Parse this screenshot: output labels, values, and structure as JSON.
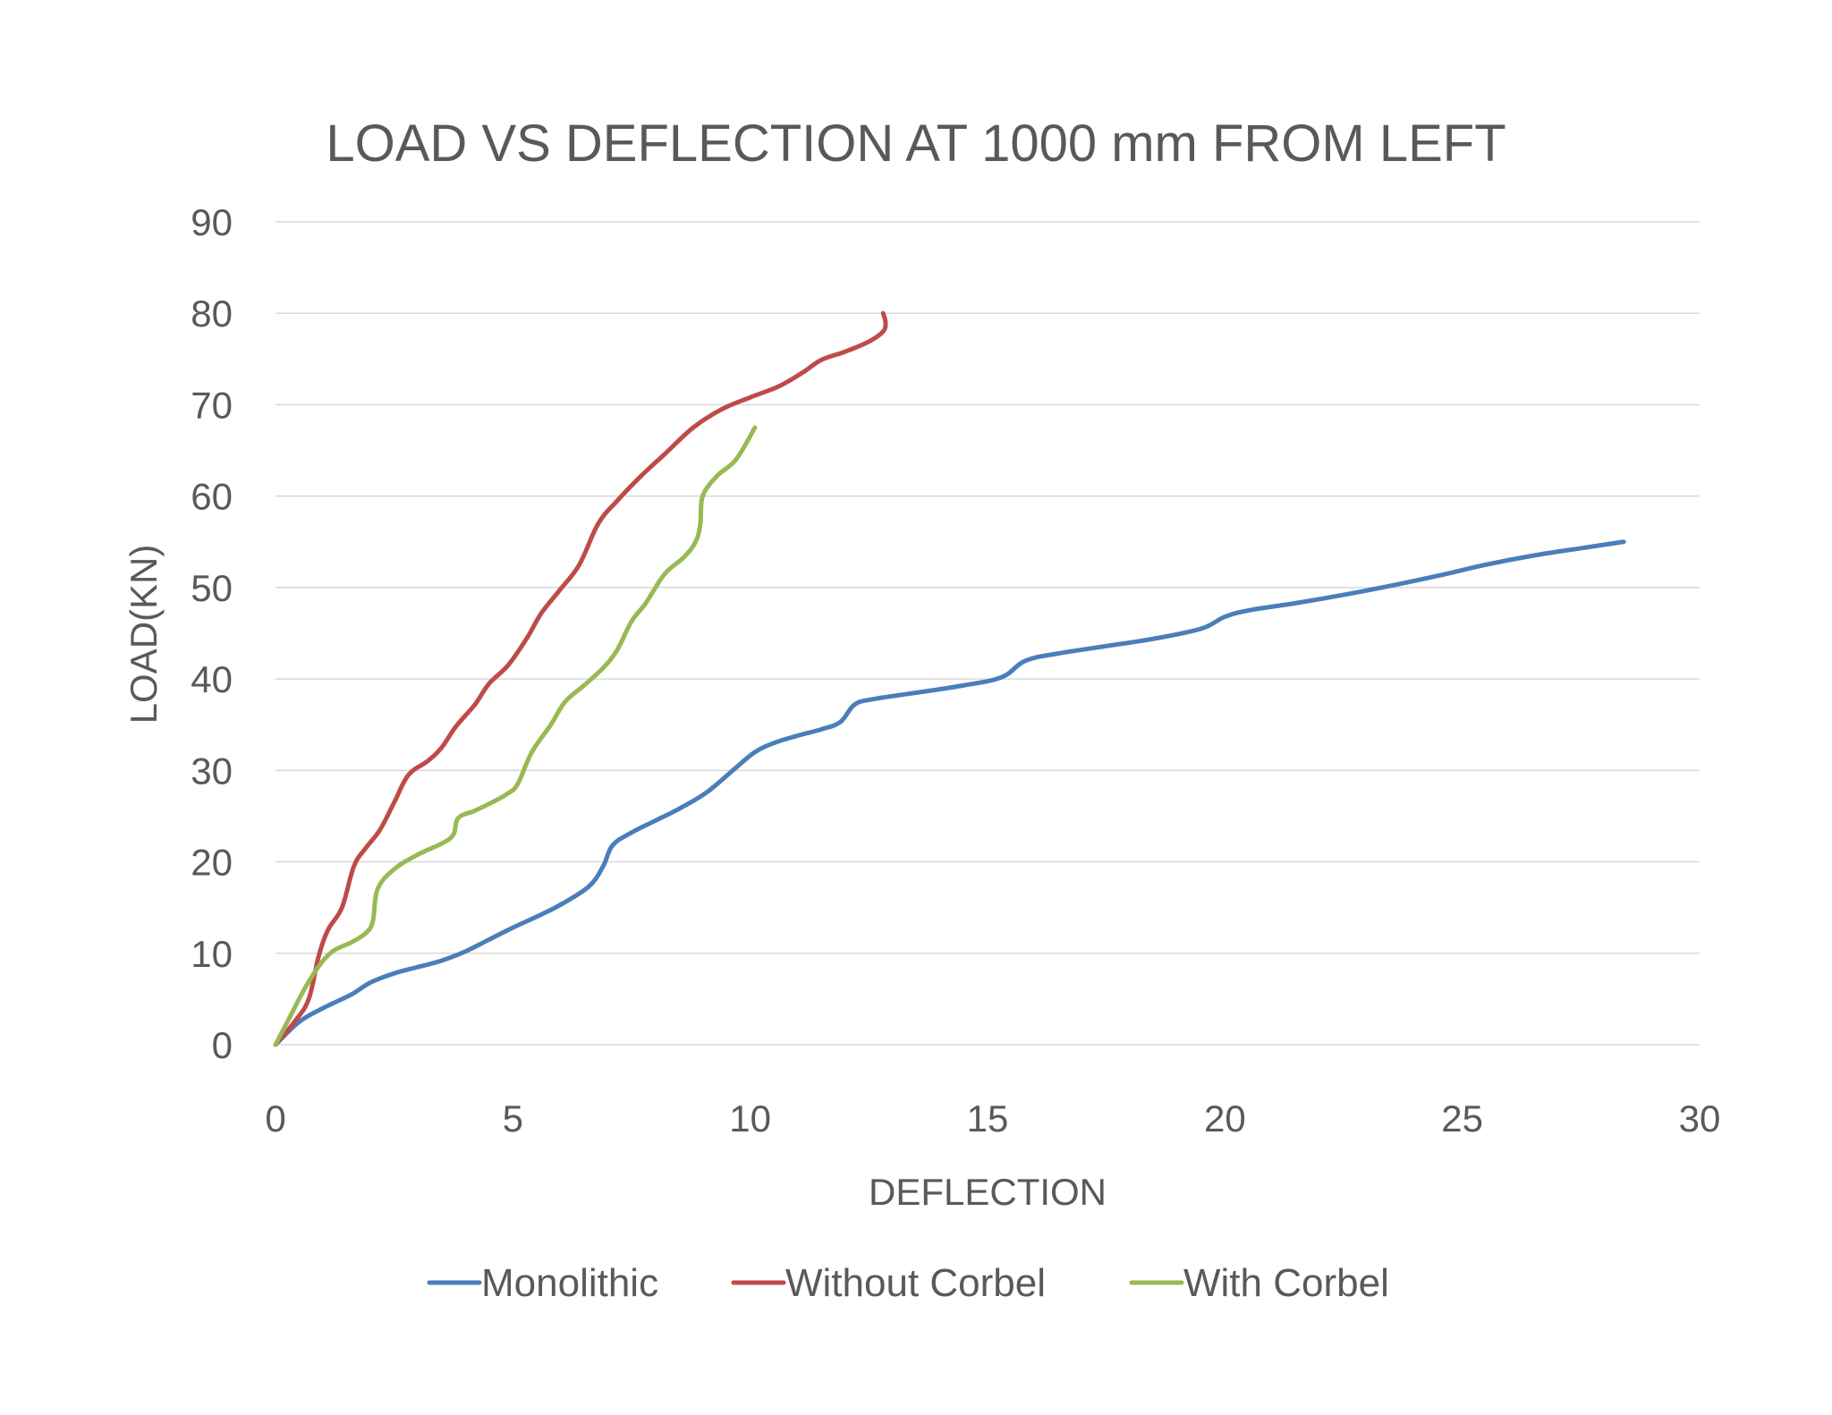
{
  "chart_data": {
    "type": "line",
    "title": "LOAD VS DEFLECTION AT 1000 mm FROM LEFT",
    "xlabel": "DEFLECTION",
    "ylabel": "LOAD(KN)",
    "xlim": [
      0,
      30
    ],
    "ylim": [
      0,
      90
    ],
    "xticks": [
      0,
      5,
      10,
      15,
      20,
      25,
      30
    ],
    "yticks": [
      0,
      10,
      20,
      30,
      40,
      50,
      60,
      70,
      80,
      90
    ],
    "grid": "horizontal",
    "legend_position": "bottom",
    "series": [
      {
        "name": "Monolithic",
        "color": "#4a7ebb",
        "points": [
          [
            0,
            0
          ],
          [
            0.5,
            2.5
          ],
          [
            1.0,
            4
          ],
          [
            1.6,
            5.5
          ],
          [
            2.0,
            6.8
          ],
          [
            2.5,
            7.8
          ],
          [
            3.0,
            8.5
          ],
          [
            3.5,
            9.2
          ],
          [
            4.0,
            10.2
          ],
          [
            4.5,
            11.5
          ],
          [
            5.0,
            12.8
          ],
          [
            5.5,
            14
          ],
          [
            6.0,
            15.3
          ],
          [
            6.6,
            17.3
          ],
          [
            6.9,
            19.5
          ],
          [
            7.1,
            21.8
          ],
          [
            7.5,
            23.2
          ],
          [
            8.0,
            24.5
          ],
          [
            8.5,
            25.8
          ],
          [
            9.0,
            27.3
          ],
          [
            9.3,
            28.5
          ],
          [
            9.7,
            30.3
          ],
          [
            10.1,
            32
          ],
          [
            10.5,
            33
          ],
          [
            11.0,
            33.8
          ],
          [
            11.5,
            34.5
          ],
          [
            11.9,
            35.3
          ],
          [
            12.2,
            37.2
          ],
          [
            12.6,
            37.8
          ],
          [
            13.5,
            38.5
          ],
          [
            14.5,
            39.3
          ],
          [
            15.3,
            40.2
          ],
          [
            15.8,
            42
          ],
          [
            16.5,
            42.8
          ],
          [
            17.5,
            43.6
          ],
          [
            18.5,
            44.4
          ],
          [
            19.5,
            45.5
          ],
          [
            20.0,
            46.8
          ],
          [
            20.5,
            47.5
          ],
          [
            21.5,
            48.3
          ],
          [
            22.5,
            49.2
          ],
          [
            23.5,
            50.2
          ],
          [
            24.5,
            51.3
          ],
          [
            25.5,
            52.5
          ],
          [
            26.5,
            53.5
          ],
          [
            27.5,
            54.3
          ],
          [
            28.4,
            55
          ]
        ]
      },
      {
        "name": "Without Corbel",
        "color": "#be4b48",
        "points": [
          [
            0,
            0
          ],
          [
            0.4,
            2.5
          ],
          [
            0.7,
            5
          ],
          [
            0.9,
            9.5
          ],
          [
            1.1,
            12.5
          ],
          [
            1.4,
            15
          ],
          [
            1.65,
            19.5
          ],
          [
            1.9,
            21.5
          ],
          [
            2.2,
            23.5
          ],
          [
            2.5,
            26.5
          ],
          [
            2.8,
            29.5
          ],
          [
            3.2,
            31
          ],
          [
            3.5,
            32.5
          ],
          [
            3.8,
            34.8
          ],
          [
            4.2,
            37.2
          ],
          [
            4.5,
            39.5
          ],
          [
            4.9,
            41.5
          ],
          [
            5.3,
            44.5
          ],
          [
            5.6,
            47.2
          ],
          [
            6.0,
            49.8
          ],
          [
            6.4,
            52.5
          ],
          [
            6.8,
            57
          ],
          [
            7.2,
            59.5
          ],
          [
            7.7,
            62.2
          ],
          [
            8.2,
            64.6
          ],
          [
            8.8,
            67.5
          ],
          [
            9.4,
            69.5
          ],
          [
            10.0,
            70.8
          ],
          [
            10.6,
            72
          ],
          [
            11.1,
            73.5
          ],
          [
            11.5,
            74.9
          ],
          [
            12.0,
            75.8
          ],
          [
            12.5,
            76.9
          ],
          [
            12.8,
            78
          ],
          [
            12.85,
            79
          ],
          [
            12.8,
            80
          ]
        ]
      },
      {
        "name": "With Corbel",
        "color": "#98b954",
        "points": [
          [
            0,
            0
          ],
          [
            0.3,
            3
          ],
          [
            0.6,
            6
          ],
          [
            0.9,
            8.5
          ],
          [
            1.2,
            10.2
          ],
          [
            1.6,
            11.2
          ],
          [
            1.9,
            12.2
          ],
          [
            2.05,
            13.5
          ],
          [
            2.15,
            17
          ],
          [
            2.5,
            19.2
          ],
          [
            3.0,
            20.8
          ],
          [
            3.5,
            22
          ],
          [
            3.75,
            23
          ],
          [
            3.85,
            24.8
          ],
          [
            4.2,
            25.6
          ],
          [
            4.6,
            26.6
          ],
          [
            4.9,
            27.5
          ],
          [
            5.1,
            28.5
          ],
          [
            5.4,
            32
          ],
          [
            5.8,
            35
          ],
          [
            6.1,
            37.5
          ],
          [
            6.5,
            39.3
          ],
          [
            6.9,
            41.2
          ],
          [
            7.2,
            43.2
          ],
          [
            7.5,
            46.3
          ],
          [
            7.8,
            48.3
          ],
          [
            8.2,
            51.5
          ],
          [
            8.6,
            53.3
          ],
          [
            8.85,
            55
          ],
          [
            8.95,
            57
          ],
          [
            9.0,
            60
          ],
          [
            9.3,
            62.2
          ],
          [
            9.7,
            64
          ],
          [
            10.1,
            67.5
          ]
        ]
      }
    ]
  }
}
